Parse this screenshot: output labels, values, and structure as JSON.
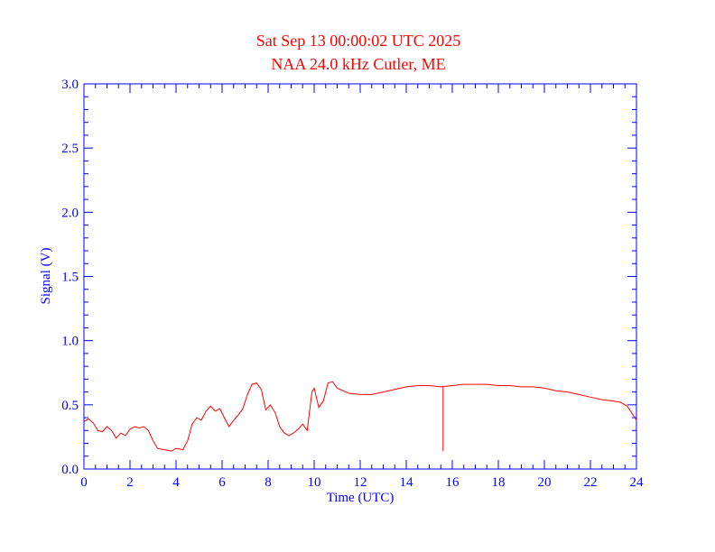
{
  "chart_data": {
    "type": "line",
    "title": "Sat Sep 13 00:00:02 UTC 2025",
    "subtitle": "NAA 24.0 kHz Cutler, ME",
    "xlabel": "Time (UTC)",
    "ylabel": "Signal (V)",
    "xlim": [
      0,
      24
    ],
    "ylim": [
      0,
      3.0
    ],
    "xticks": [
      0,
      2,
      4,
      6,
      8,
      10,
      12,
      14,
      16,
      18,
      20,
      22,
      24
    ],
    "xtick_labels": [
      "0",
      "2",
      "4",
      "6",
      "8",
      "10",
      "12",
      "14",
      "16",
      "18",
      "20",
      "22",
      "24"
    ],
    "yticks": [
      0,
      0.5,
      1.0,
      1.5,
      2.0,
      2.5,
      3.0
    ],
    "ytick_labels": [
      "0.0",
      "0.5",
      "1.0",
      "1.5",
      "2.0",
      "2.5",
      "3.0"
    ],
    "grid": false,
    "colors": {
      "axes": "#0000ff",
      "series": "#ff0000",
      "title": "#ff0000"
    },
    "series": [
      {
        "x": [
          0,
          0.2,
          0.4,
          0.6,
          0.8,
          1.0,
          1.2,
          1.4,
          1.6,
          1.8,
          2.0,
          2.2,
          2.4,
          2.6,
          2.8,
          3.0,
          3.2,
          3.5,
          3.8,
          4.0,
          4.3,
          4.5,
          4.7,
          4.9,
          5.1,
          5.3,
          5.5,
          5.7,
          5.9,
          6.1,
          6.3,
          6.5,
          6.7,
          6.9,
          7.1,
          7.3,
          7.5,
          7.7,
          7.9,
          8.1,
          8.3,
          8.5,
          8.7,
          8.9,
          9.1,
          9.3,
          9.5,
          9.7,
          9.9,
          10.0,
          10.2,
          10.4,
          10.6,
          10.8,
          11.0,
          11.5,
          12.0,
          12.5,
          13.0,
          13.5,
          14.0,
          14.5,
          15.0,
          15.5,
          16.0,
          16.5,
          17.0,
          17.5,
          18.0,
          18.5,
          19.0,
          19.5,
          20.0,
          20.5,
          21.0,
          21.5,
          22.0,
          22.5,
          23.0,
          23.3,
          23.6,
          24.0
        ],
        "y": [
          0.37,
          0.39,
          0.36,
          0.3,
          0.29,
          0.33,
          0.3,
          0.24,
          0.28,
          0.26,
          0.31,
          0.33,
          0.32,
          0.33,
          0.3,
          0.22,
          0.16,
          0.15,
          0.14,
          0.16,
          0.15,
          0.22,
          0.35,
          0.4,
          0.38,
          0.45,
          0.49,
          0.45,
          0.47,
          0.4,
          0.33,
          0.38,
          0.42,
          0.47,
          0.58,
          0.66,
          0.67,
          0.62,
          0.46,
          0.5,
          0.44,
          0.33,
          0.28,
          0.26,
          0.28,
          0.31,
          0.35,
          0.3,
          0.6,
          0.63,
          0.48,
          0.53,
          0.67,
          0.68,
          0.63,
          0.59,
          0.58,
          0.58,
          0.6,
          0.62,
          0.64,
          0.65,
          0.65,
          0.64,
          0.65,
          0.66,
          0.66,
          0.66,
          0.65,
          0.65,
          0.64,
          0.64,
          0.63,
          0.61,
          0.6,
          0.58,
          0.56,
          0.54,
          0.53,
          0.52,
          0.49,
          0.38
        ]
      }
    ],
    "spike": {
      "x": 15.6,
      "y_top": 0.64,
      "y_bottom": 0.14
    }
  }
}
